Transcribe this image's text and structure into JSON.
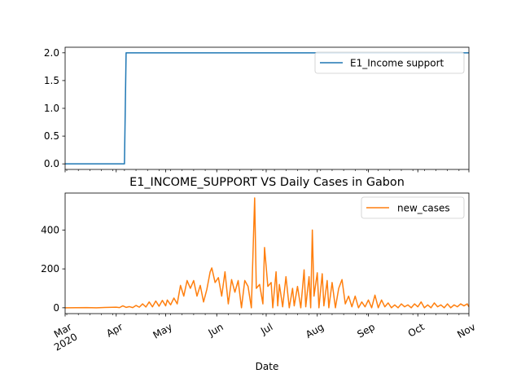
{
  "chart_data": [
    {
      "type": "line",
      "title": "",
      "xlabel": "",
      "ylabel": "",
      "x_range": [
        "2020-03-01",
        "2020-11-01"
      ],
      "ylim": [
        -0.1,
        2.1
      ],
      "y_ticks": [
        0.0,
        0.5,
        1.0,
        1.5,
        2.0
      ],
      "y_tick_labels": [
        "0.0",
        "0.5",
        "1.0",
        "1.5",
        "2.0"
      ],
      "grid": false,
      "legend_position": "top-right",
      "series": [
        {
          "name": "E1_Income support",
          "color": "#1f77b4",
          "points": [
            {
              "x": "2020-03-01",
              "y": 0
            },
            {
              "x": "2020-04-06",
              "y": 0
            },
            {
              "x": "2020-04-07",
              "y": 2
            },
            {
              "x": "2020-11-01",
              "y": 2
            }
          ]
        }
      ]
    },
    {
      "type": "line",
      "title": "E1_INCOME_SUPPORT VS Daily Cases in Gabon",
      "xlabel": "Date",
      "ylabel": "",
      "x_range": [
        "2020-03-01",
        "2020-11-01"
      ],
      "ylim": [
        -30,
        590
      ],
      "y_ticks": [
        0,
        200,
        400
      ],
      "y_tick_labels": [
        "0",
        "200",
        "400"
      ],
      "x_ticks": [
        "2020-03-01",
        "2020-04-01",
        "2020-05-01",
        "2020-06-01",
        "2020-07-01",
        "2020-08-01",
        "2020-09-01",
        "2020-10-01",
        "2020-11-01"
      ],
      "x_tick_labels": [
        "Mar\n2020",
        "Apr",
        "May",
        "Jun",
        "Jul",
        "Aug",
        "Sep",
        "Oct",
        "Nov"
      ],
      "grid": false,
      "legend_position": "top-right",
      "series": [
        {
          "name": "new_cases",
          "color": "#ff7f0e",
          "points": [
            {
              "x": "2020-03-01",
              "y": 0
            },
            {
              "x": "2020-03-14",
              "y": 1
            },
            {
              "x": "2020-03-20",
              "y": 0
            },
            {
              "x": "2020-03-27",
              "y": 2
            },
            {
              "x": "2020-04-01",
              "y": 3
            },
            {
              "x": "2020-04-03",
              "y": 1
            },
            {
              "x": "2020-04-05",
              "y": 10
            },
            {
              "x": "2020-04-07",
              "y": 2
            },
            {
              "x": "2020-04-09",
              "y": 6
            },
            {
              "x": "2020-04-11",
              "y": 1
            },
            {
              "x": "2020-04-13",
              "y": 12
            },
            {
              "x": "2020-04-15",
              "y": 3
            },
            {
              "x": "2020-04-17",
              "y": 20
            },
            {
              "x": "2020-04-19",
              "y": 4
            },
            {
              "x": "2020-04-21",
              "y": 30
            },
            {
              "x": "2020-04-23",
              "y": 5
            },
            {
              "x": "2020-04-25",
              "y": 35
            },
            {
              "x": "2020-04-27",
              "y": 8
            },
            {
              "x": "2020-04-29",
              "y": 38
            },
            {
              "x": "2020-05-01",
              "y": 10
            },
            {
              "x": "2020-05-02",
              "y": 40
            },
            {
              "x": "2020-05-04",
              "y": 15
            },
            {
              "x": "2020-05-06",
              "y": 50
            },
            {
              "x": "2020-05-08",
              "y": 20
            },
            {
              "x": "2020-05-10",
              "y": 115
            },
            {
              "x": "2020-05-12",
              "y": 60
            },
            {
              "x": "2020-05-14",
              "y": 140
            },
            {
              "x": "2020-05-16",
              "y": 100
            },
            {
              "x": "2020-05-18",
              "y": 140
            },
            {
              "x": "2020-05-20",
              "y": 60
            },
            {
              "x": "2020-05-22",
              "y": 115
            },
            {
              "x": "2020-05-24",
              "y": 30
            },
            {
              "x": "2020-05-26",
              "y": 95
            },
            {
              "x": "2020-05-28",
              "y": 185
            },
            {
              "x": "2020-05-29",
              "y": 205
            },
            {
              "x": "2020-05-31",
              "y": 130
            },
            {
              "x": "2020-06-02",
              "y": 155
            },
            {
              "x": "2020-06-04",
              "y": 60
            },
            {
              "x": "2020-06-06",
              "y": 185
            },
            {
              "x": "2020-06-08",
              "y": 20
            },
            {
              "x": "2020-06-10",
              "y": 145
            },
            {
              "x": "2020-06-12",
              "y": 80
            },
            {
              "x": "2020-06-14",
              "y": 140
            },
            {
              "x": "2020-06-16",
              "y": 0
            },
            {
              "x": "2020-06-18",
              "y": 140
            },
            {
              "x": "2020-06-20",
              "y": 110
            },
            {
              "x": "2020-06-22",
              "y": 0
            },
            {
              "x": "2020-06-24",
              "y": 565
            },
            {
              "x": "2020-06-25",
              "y": 100
            },
            {
              "x": "2020-06-27",
              "y": 120
            },
            {
              "x": "2020-06-29",
              "y": 20
            },
            {
              "x": "2020-06-30",
              "y": 310
            },
            {
              "x": "2020-07-02",
              "y": 110
            },
            {
              "x": "2020-07-04",
              "y": 130
            },
            {
              "x": "2020-07-05",
              "y": 0
            },
            {
              "x": "2020-07-07",
              "y": 185
            },
            {
              "x": "2020-07-08",
              "y": 10
            },
            {
              "x": "2020-07-09",
              "y": 120
            },
            {
              "x": "2020-07-11",
              "y": 5
            },
            {
              "x": "2020-07-13",
              "y": 160
            },
            {
              "x": "2020-07-15",
              "y": 0
            },
            {
              "x": "2020-07-17",
              "y": 100
            },
            {
              "x": "2020-07-18",
              "y": 10
            },
            {
              "x": "2020-07-20",
              "y": 110
            },
            {
              "x": "2020-07-22",
              "y": 0
            },
            {
              "x": "2020-07-24",
              "y": 195
            },
            {
              "x": "2020-07-25",
              "y": 5
            },
            {
              "x": "2020-07-27",
              "y": 160
            },
            {
              "x": "2020-07-28",
              "y": 0
            },
            {
              "x": "2020-07-29",
              "y": 400
            },
            {
              "x": "2020-07-30",
              "y": 60
            },
            {
              "x": "2020-08-01",
              "y": 180
            },
            {
              "x": "2020-08-02",
              "y": 0
            },
            {
              "x": "2020-08-04",
              "y": 175
            },
            {
              "x": "2020-08-05",
              "y": 10
            },
            {
              "x": "2020-08-07",
              "y": 140
            },
            {
              "x": "2020-08-08",
              "y": 0
            },
            {
              "x": "2020-08-10",
              "y": 130
            },
            {
              "x": "2020-08-12",
              "y": 0
            },
            {
              "x": "2020-08-14",
              "y": 100
            },
            {
              "x": "2020-08-16",
              "y": 145
            },
            {
              "x": "2020-08-18",
              "y": 20
            },
            {
              "x": "2020-08-20",
              "y": 60
            },
            {
              "x": "2020-08-22",
              "y": 5
            },
            {
              "x": "2020-08-24",
              "y": 60
            },
            {
              "x": "2020-08-26",
              "y": 0
            },
            {
              "x": "2020-08-28",
              "y": 30
            },
            {
              "x": "2020-08-30",
              "y": 5
            },
            {
              "x": "2020-09-01",
              "y": 40
            },
            {
              "x": "2020-09-03",
              "y": 0
            },
            {
              "x": "2020-09-05",
              "y": 65
            },
            {
              "x": "2020-09-07",
              "y": 0
            },
            {
              "x": "2020-09-09",
              "y": 40
            },
            {
              "x": "2020-09-11",
              "y": 5
            },
            {
              "x": "2020-09-13",
              "y": 25
            },
            {
              "x": "2020-09-15",
              "y": 0
            },
            {
              "x": "2020-09-17",
              "y": 15
            },
            {
              "x": "2020-09-19",
              "y": 0
            },
            {
              "x": "2020-09-21",
              "y": 20
            },
            {
              "x": "2020-09-23",
              "y": 5
            },
            {
              "x": "2020-09-25",
              "y": 15
            },
            {
              "x": "2020-09-27",
              "y": 0
            },
            {
              "x": "2020-09-29",
              "y": 20
            },
            {
              "x": "2020-10-01",
              "y": 5
            },
            {
              "x": "2020-10-03",
              "y": 30
            },
            {
              "x": "2020-10-05",
              "y": 0
            },
            {
              "x": "2020-10-07",
              "y": 15
            },
            {
              "x": "2020-10-09",
              "y": 0
            },
            {
              "x": "2020-10-11",
              "y": 25
            },
            {
              "x": "2020-10-13",
              "y": 5
            },
            {
              "x": "2020-10-15",
              "y": 15
            },
            {
              "x": "2020-10-17",
              "y": 0
            },
            {
              "x": "2020-10-19",
              "y": 20
            },
            {
              "x": "2020-10-21",
              "y": 0
            },
            {
              "x": "2020-10-23",
              "y": 15
            },
            {
              "x": "2020-10-25",
              "y": 5
            },
            {
              "x": "2020-10-27",
              "y": 20
            },
            {
              "x": "2020-10-29",
              "y": 10
            },
            {
              "x": "2020-10-31",
              "y": 20
            },
            {
              "x": "2020-11-01",
              "y": 5
            }
          ]
        }
      ]
    }
  ]
}
